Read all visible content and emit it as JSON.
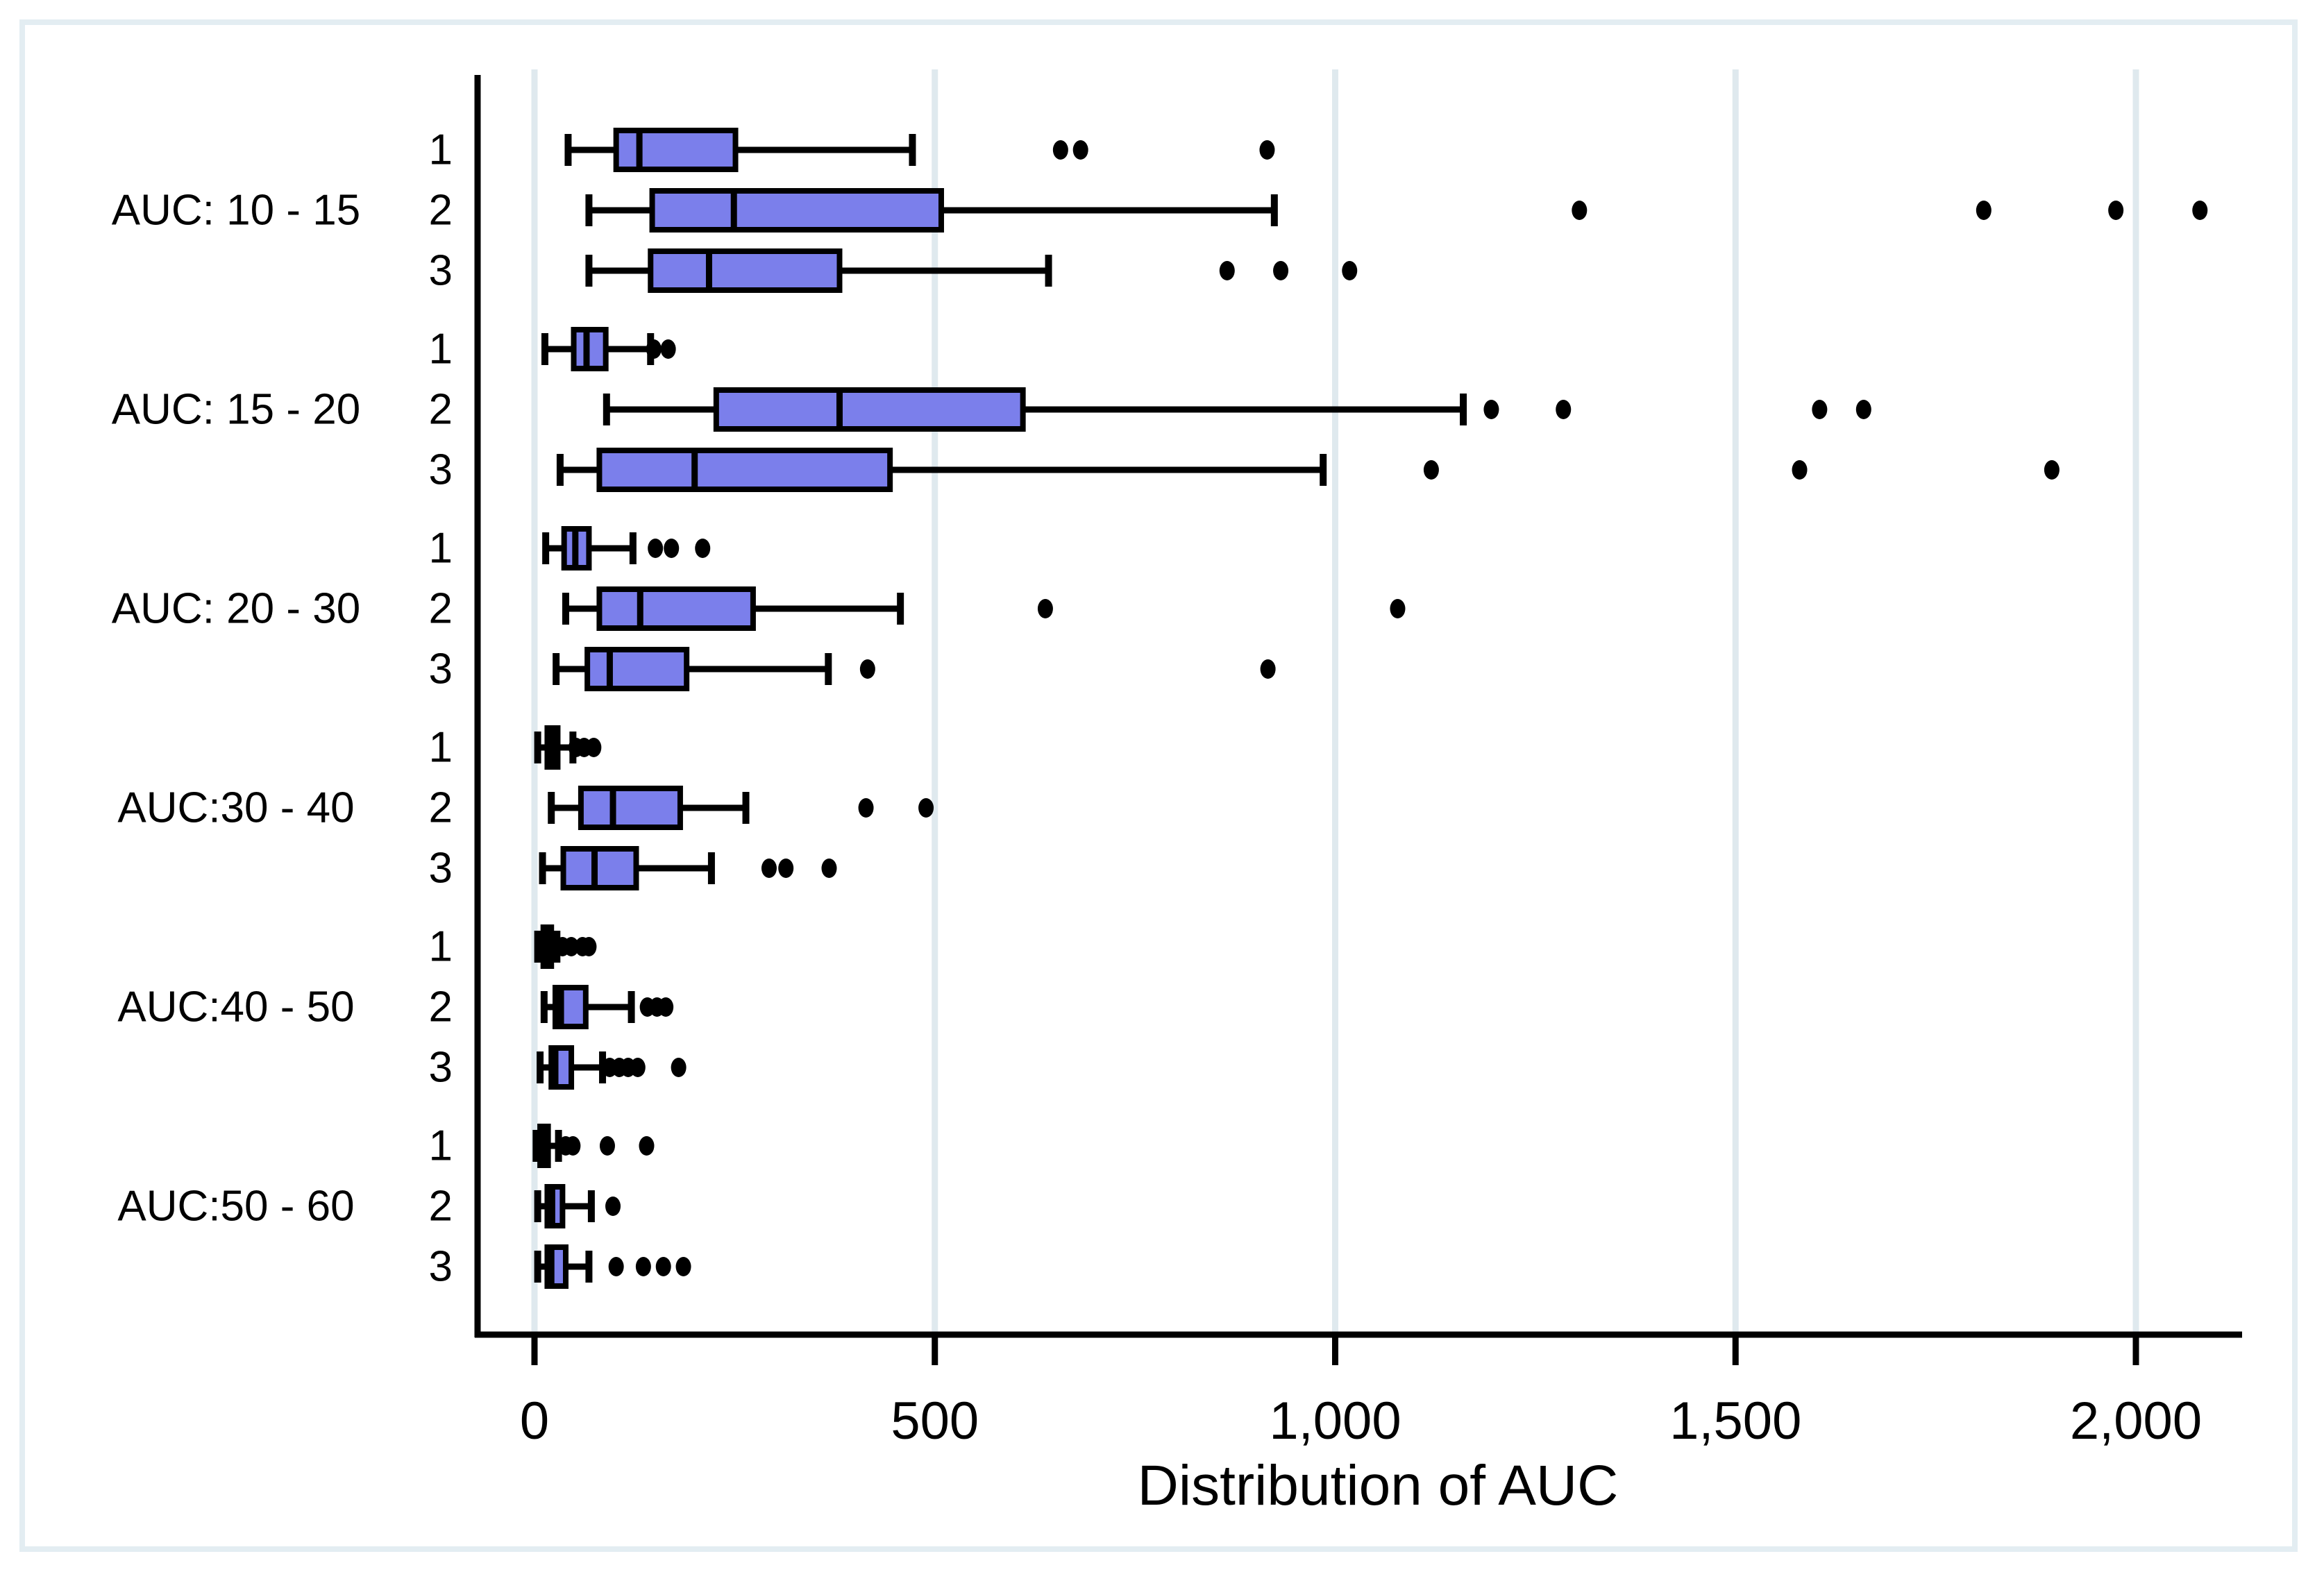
{
  "chart_data": {
    "type": "box",
    "orientation": "horizontal",
    "title": "",
    "xlabel": "Distribution of AUC",
    "ylabel": "",
    "xlim": [
      -75,
      2135
    ],
    "grid": "vertical-light",
    "x_ticks": [
      {
        "value": 0,
        "label": "0"
      },
      {
        "value": 500,
        "label": "500"
      },
      {
        "value": 1000,
        "label": "1,000"
      },
      {
        "value": 1500,
        "label": "1,500"
      },
      {
        "value": 2000,
        "label": "2,000"
      }
    ],
    "colors": {
      "box_fill": "#7B7FEB",
      "box_stroke": "#000000",
      "whisker": "#000000",
      "outlier": "#000000",
      "gridline": "#dfe9ee",
      "frame": "#e3edf2",
      "background": "#ffffff"
    },
    "groups": [
      {
        "label": "AUC: 10 - 15",
        "rows": [
          {
            "label": "1",
            "whisker_low": 42,
            "q1": 102,
            "median": 131,
            "q3": 251,
            "whisker_high": 472,
            "outliers": [
              657,
              682,
              915
            ]
          },
          {
            "label": "2",
            "whisker_low": 68,
            "q1": 147,
            "median": 249,
            "q3": 508,
            "whisker_high": 924,
            "outliers": [
              1305,
              1810,
              1975,
              2080
            ]
          },
          {
            "label": "3",
            "whisker_low": 68,
            "q1": 145,
            "median": 218,
            "q3": 381,
            "whisker_high": 642,
            "outliers": [
              865,
              932,
              1018
            ]
          }
        ]
      },
      {
        "label": "AUC: 15 - 20",
        "rows": [
          {
            "label": "1",
            "whisker_low": 13,
            "q1": 49,
            "median": 65,
            "q3": 89,
            "whisker_high": 145,
            "outliers": [
              149,
              167
            ]
          },
          {
            "label": "2",
            "whisker_low": 90,
            "q1": 227,
            "median": 381,
            "q3": 610,
            "whisker_high": 1160,
            "outliers": [
              1195,
              1285,
              1605,
              1660
            ]
          },
          {
            "label": "3",
            "whisker_low": 32,
            "q1": 81,
            "median": 200,
            "q3": 444,
            "whisker_high": 985,
            "outliers": [
              1120,
              1580,
              1895
            ]
          }
        ]
      },
      {
        "label": "AUC: 20 - 30",
        "rows": [
          {
            "label": "1",
            "whisker_low": 14,
            "q1": 37,
            "median": 51,
            "q3": 68,
            "whisker_high": 123,
            "outliers": [
              151,
              171,
              210
            ]
          },
          {
            "label": "2",
            "whisker_low": 39,
            "q1": 81,
            "median": 132,
            "q3": 273,
            "whisker_high": 457,
            "outliers": [
              638,
              1078
            ]
          },
          {
            "label": "3",
            "whisker_low": 27,
            "q1": 66,
            "median": 94,
            "q3": 190,
            "whisker_high": 367,
            "outliers": [
              416,
              916
            ]
          }
        ]
      },
      {
        "label": "AUC:30 - 40",
        "rows": [
          {
            "label": "1",
            "whisker_low": 4,
            "q1": 16,
            "median": 22,
            "q3": 29,
            "whisker_high": 48,
            "outliers": [
              52,
              62,
              74
            ]
          },
          {
            "label": "2",
            "whisker_low": 21,
            "q1": 58,
            "median": 98,
            "q3": 182,
            "whisker_high": 264,
            "outliers": [
              414,
              489
            ]
          },
          {
            "label": "3",
            "whisker_low": 10,
            "q1": 36,
            "median": 75,
            "q3": 127,
            "whisker_high": 221,
            "outliers": [
              293,
              314,
              368
            ]
          }
        ]
      },
      {
        "label": "AUC:40 - 50",
        "rows": [
          {
            "label": "1",
            "whisker_low": 4,
            "q1": 11,
            "median": 16,
            "q3": 21,
            "whisker_high": 28,
            "outliers": [
              35,
              46,
              60,
              68
            ]
          },
          {
            "label": "2",
            "whisker_low": 12,
            "q1": 26,
            "median": 33,
            "q3": 64,
            "whisker_high": 121,
            "outliers": [
              141,
              153,
              164
            ]
          },
          {
            "label": "3",
            "whisker_low": 7,
            "q1": 21,
            "median": 26,
            "q3": 46,
            "whisker_high": 85,
            "outliers": [
              94,
              106,
              117,
              129,
              180
            ]
          }
        ]
      },
      {
        "label": "AUC:50 - 60",
        "rows": [
          {
            "label": "1",
            "whisker_low": 2,
            "q1": 7,
            "median": 11,
            "q3": 17,
            "whisker_high": 30,
            "outliers": [
              39,
              48,
              91,
              140
            ]
          },
          {
            "label": "2",
            "whisker_low": 4,
            "q1": 16,
            "median": 22,
            "q3": 35,
            "whisker_high": 71,
            "outliers": [
              98
            ]
          },
          {
            "label": "3",
            "whisker_low": 4,
            "q1": 16,
            "median": 21,
            "q3": 39,
            "whisker_high": 68,
            "outliers": [
              102,
              136,
              161,
              186
            ]
          }
        ]
      }
    ]
  }
}
